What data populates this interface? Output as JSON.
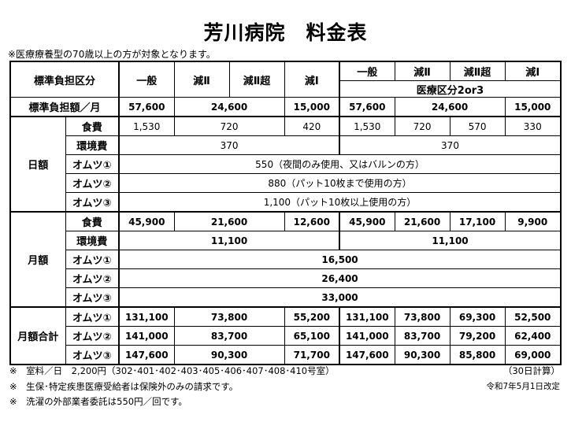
{
  "title": "芳川病院　料金表",
  "note_top": "※医療療養型の70歳以上の方が対象となります。",
  "header": {
    "category": "標準負担区分",
    "left": [
      "一般",
      "減Ⅱ",
      "減Ⅱ超",
      "減Ⅰ"
    ],
    "right": [
      "一般",
      "減Ⅱ",
      "減Ⅱ超",
      "減Ⅰ"
    ],
    "right_sub": "医療区分2or3"
  },
  "standard": {
    "label": "標準負担額／月",
    "left": [
      "57,600",
      "24,600",
      "15,000"
    ],
    "right": [
      "57,600",
      "24,600",
      "15,000"
    ]
  },
  "daily": {
    "label": "日額",
    "meal": {
      "label": "食費",
      "left": [
        "1,530",
        "720",
        "420"
      ],
      "right": [
        "1,530",
        "720",
        "570",
        "330"
      ]
    },
    "env": {
      "label": "環境費",
      "left": "370",
      "right": "370"
    },
    "o1": {
      "label": "オムツ①",
      "value": "550（夜間のみ使用、又はバルンの方）"
    },
    "o2": {
      "label": "オムツ②",
      "value": "880（パット10枚まで使用の方）"
    },
    "o3": {
      "label": "オムツ③",
      "value": "1,100（パット10枚以上使用の方）"
    }
  },
  "monthly": {
    "label": "月額",
    "meal": {
      "label": "食費",
      "left": [
        "45,900",
        "21,600",
        "12,600"
      ],
      "right": [
        "45,900",
        "21,600",
        "17,100",
        "9,900"
      ]
    },
    "env": {
      "label": "環境費",
      "left": "11,100",
      "right": "11,100"
    },
    "o1": {
      "label": "オムツ①",
      "value": "16,500"
    },
    "o2": {
      "label": "オムツ②",
      "value": "26,400"
    },
    "o3": {
      "label": "オムツ③",
      "value": "33,000"
    }
  },
  "total": {
    "label": "月額合計",
    "rows": [
      {
        "label": "オムツ①",
        "left": [
          "131,100",
          "73,800",
          "55,200"
        ],
        "right": [
          "131,100",
          "73,800",
          "69,300",
          "52,500"
        ]
      },
      {
        "label": "オムツ②",
        "left": [
          "141,000",
          "83,700",
          "65,100"
        ],
        "right": [
          "141,000",
          "83,700",
          "79,200",
          "62,400"
        ]
      },
      {
        "label": "オムツ③",
        "left": [
          "147,600",
          "90,300",
          "71,700"
        ],
        "right": [
          "147,600",
          "90,300",
          "85,800",
          "69,000"
        ]
      }
    ]
  },
  "footer": {
    "n1": "※　室料／日　2,200円（302･401･402･403･405･406･407･408･410号室）",
    "n2": "※　生保･特定疾患医療受給者は保険外のみの請求です。",
    "n3": "※　洗濯の外部業者委託は550円／回です。",
    "calc": "（30日計算）",
    "revised": "令和7年5月1日改定"
  }
}
